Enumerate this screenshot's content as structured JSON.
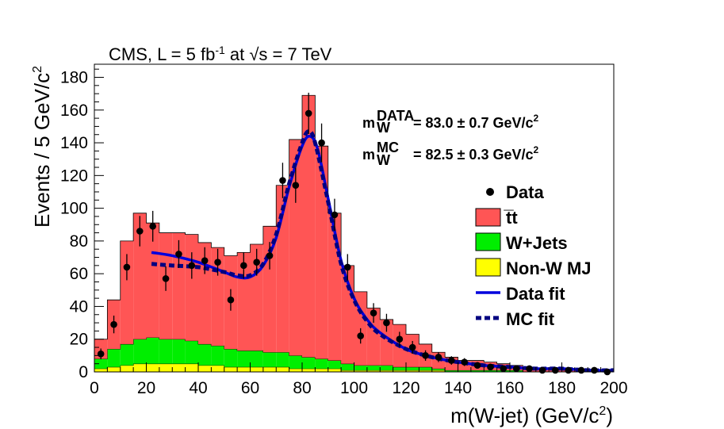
{
  "chart_data": {
    "type": "bar",
    "style": "stacked-step-histogram-with-points-and-fit-curves",
    "header": "CMS, L = 5 fb⁻¹ at √s = 7 TeV",
    "header_parts": {
      "lead": "CMS, L = 5 fb",
      "sup": "-1",
      "mid": " at ",
      "root": "√",
      "tail": "s = 7 TeV"
    },
    "xlabel": "m(W-jet) (GeV/c²)",
    "xlabel_parts": {
      "main": "m(W-jet) (GeV/c",
      "sup": "2",
      "end": ")"
    },
    "ylabel": "Events / 5 GeV/c²",
    "ylabel_parts": {
      "main": "Events / 5 GeV/c",
      "sup": "2"
    },
    "xlim": [
      0,
      200
    ],
    "ylim": [
      0,
      188
    ],
    "x_ticks": [
      0,
      20,
      40,
      60,
      80,
      100,
      120,
      140,
      160,
      180,
      200
    ],
    "y_ticks": [
      0,
      20,
      40,
      60,
      80,
      100,
      120,
      140,
      160,
      180
    ],
    "bin_edges": [
      0,
      5,
      10,
      15,
      20,
      25,
      30,
      35,
      40,
      45,
      50,
      55,
      60,
      65,
      70,
      75,
      80,
      85,
      90,
      95,
      100,
      105,
      110,
      115,
      120,
      125,
      130,
      135,
      140,
      145,
      150,
      155,
      160,
      165,
      170,
      175,
      180,
      185,
      190,
      195,
      200
    ],
    "series": [
      {
        "name": "Non-W MJ",
        "color": "#ffff00",
        "values": [
          2,
          3,
          4,
          5,
          5,
          5,
          5,
          5,
          4,
          4,
          3,
          3,
          3,
          3,
          3,
          2,
          2,
          2,
          2,
          1,
          1,
          1,
          1,
          1,
          1,
          1,
          1,
          0,
          0,
          0,
          0,
          0,
          0,
          0,
          0,
          0,
          0,
          0,
          0,
          0
        ]
      },
      {
        "name": "W+Jets",
        "color": "#00ee00",
        "values": [
          6,
          11,
          13,
          15,
          16,
          15,
          15,
          14,
          13,
          12,
          11,
          10,
          10,
          9,
          9,
          8,
          7,
          6,
          5,
          4,
          3,
          3,
          3,
          2,
          2,
          2,
          1,
          1,
          1,
          1,
          1,
          1,
          1,
          0,
          0,
          0,
          0,
          0,
          0,
          0
        ]
      },
      {
        "name": "t̅t",
        "color": "#ff5555",
        "values": [
          12,
          30,
          63,
          77,
          70,
          65,
          65,
          65,
          62,
          60,
          57,
          60,
          65,
          77,
          102,
          132,
          160,
          130,
          90,
          60,
          45,
          35,
          28,
          26,
          20,
          14,
          10,
          8,
          6,
          6,
          5,
          4,
          3,
          2,
          2,
          2,
          1,
          1,
          1,
          1
        ]
      }
    ],
    "data_points": {
      "name": "Data",
      "x": [
        2.5,
        7.5,
        12.5,
        17.5,
        22.5,
        27.5,
        32.5,
        37.5,
        42.5,
        47.5,
        52.5,
        57.5,
        62.5,
        67.5,
        72.5,
        77.5,
        82.5,
        87.5,
        92.5,
        97.5,
        102.5,
        107.5,
        112.5,
        117.5,
        122.5,
        127.5,
        132.5,
        137.5,
        142.5,
        147.5,
        152.5,
        157.5,
        162.5,
        167.5,
        172.5,
        177.5,
        182.5,
        187.5,
        192.5,
        197.5
      ],
      "y": [
        11,
        29,
        64,
        86,
        89,
        57,
        72,
        65,
        68,
        67,
        44,
        65,
        67,
        71,
        117,
        114,
        158,
        140,
        96,
        64,
        22,
        36,
        30,
        20,
        15,
        10,
        9,
        7,
        6,
        4,
        3,
        2,
        2,
        2,
        1,
        1,
        1,
        1,
        1,
        0
      ],
      "err": [
        3.3,
        5.4,
        8,
        9.3,
        9.4,
        7.5,
        8.5,
        8.1,
        8.2,
        8.2,
        6.6,
        8.1,
        8.2,
        8.4,
        10.8,
        10.7,
        12.6,
        11.8,
        9.8,
        8,
        4.7,
        6,
        5.5,
        4.5,
        3.9,
        3.2,
        3,
        2.6,
        2.4,
        2,
        1.7,
        1.4,
        1.4,
        1.4,
        1,
        1,
        1,
        1,
        1,
        0
      ]
    },
    "fits": [
      {
        "name": "Data fit",
        "color": "#0000dd",
        "dash": false,
        "x": [
          22,
          30,
          40,
          50,
          55,
          60,
          65,
          70,
          75,
          80,
          83,
          86,
          90,
          95,
          100,
          105,
          110,
          120,
          130,
          140,
          150,
          160,
          170,
          180,
          190,
          200
        ],
        "y": [
          73,
          71,
          67,
          61,
          58,
          58,
          65,
          82,
          113,
          138,
          144,
          136,
          106,
          68,
          45,
          32,
          24,
          14,
          9,
          6,
          4,
          3,
          2,
          2,
          1,
          1
        ]
      },
      {
        "name": "MC fit",
        "color": "#000080",
        "dash": true,
        "x": [
          22,
          30,
          40,
          50,
          55,
          60,
          65,
          70,
          75,
          80,
          82.5,
          85,
          90,
          95,
          100,
          105,
          110,
          120,
          130,
          140,
          150,
          160,
          170,
          180,
          190,
          200
        ],
        "y": [
          66,
          65,
          64,
          61,
          59,
          59,
          66,
          84,
          115,
          140,
          147,
          140,
          104,
          66,
          44,
          31,
          23,
          14,
          9,
          6,
          4,
          3,
          2,
          2,
          1,
          1
        ]
      }
    ],
    "annotations": [
      {
        "label_main": "m",
        "sub": "W",
        "sup": "DATA",
        "value": "=  83.0 ± 0.7 GeV/c",
        "value_sup": "2"
      },
      {
        "label_main": "m",
        "sub": "W",
        "sup": "MC",
        "value": "=   82.5 ± 0.3 GeV/c",
        "value_sup": "2"
      }
    ],
    "legend": {
      "placement": "right",
      "entries": [
        {
          "label": "Data",
          "kind": "marker",
          "color": "#000000"
        },
        {
          "label": "t̅t",
          "kind": "box",
          "color": "#ff5555"
        },
        {
          "label": "W+Jets",
          "kind": "box",
          "color": "#00ee00"
        },
        {
          "label": "Non-W MJ",
          "kind": "box",
          "color": "#ffff00"
        },
        {
          "label": "Data fit",
          "kind": "line",
          "color": "#0000dd"
        },
        {
          "label": "MC fit",
          "kind": "dash",
          "color": "#000080"
        }
      ]
    }
  }
}
